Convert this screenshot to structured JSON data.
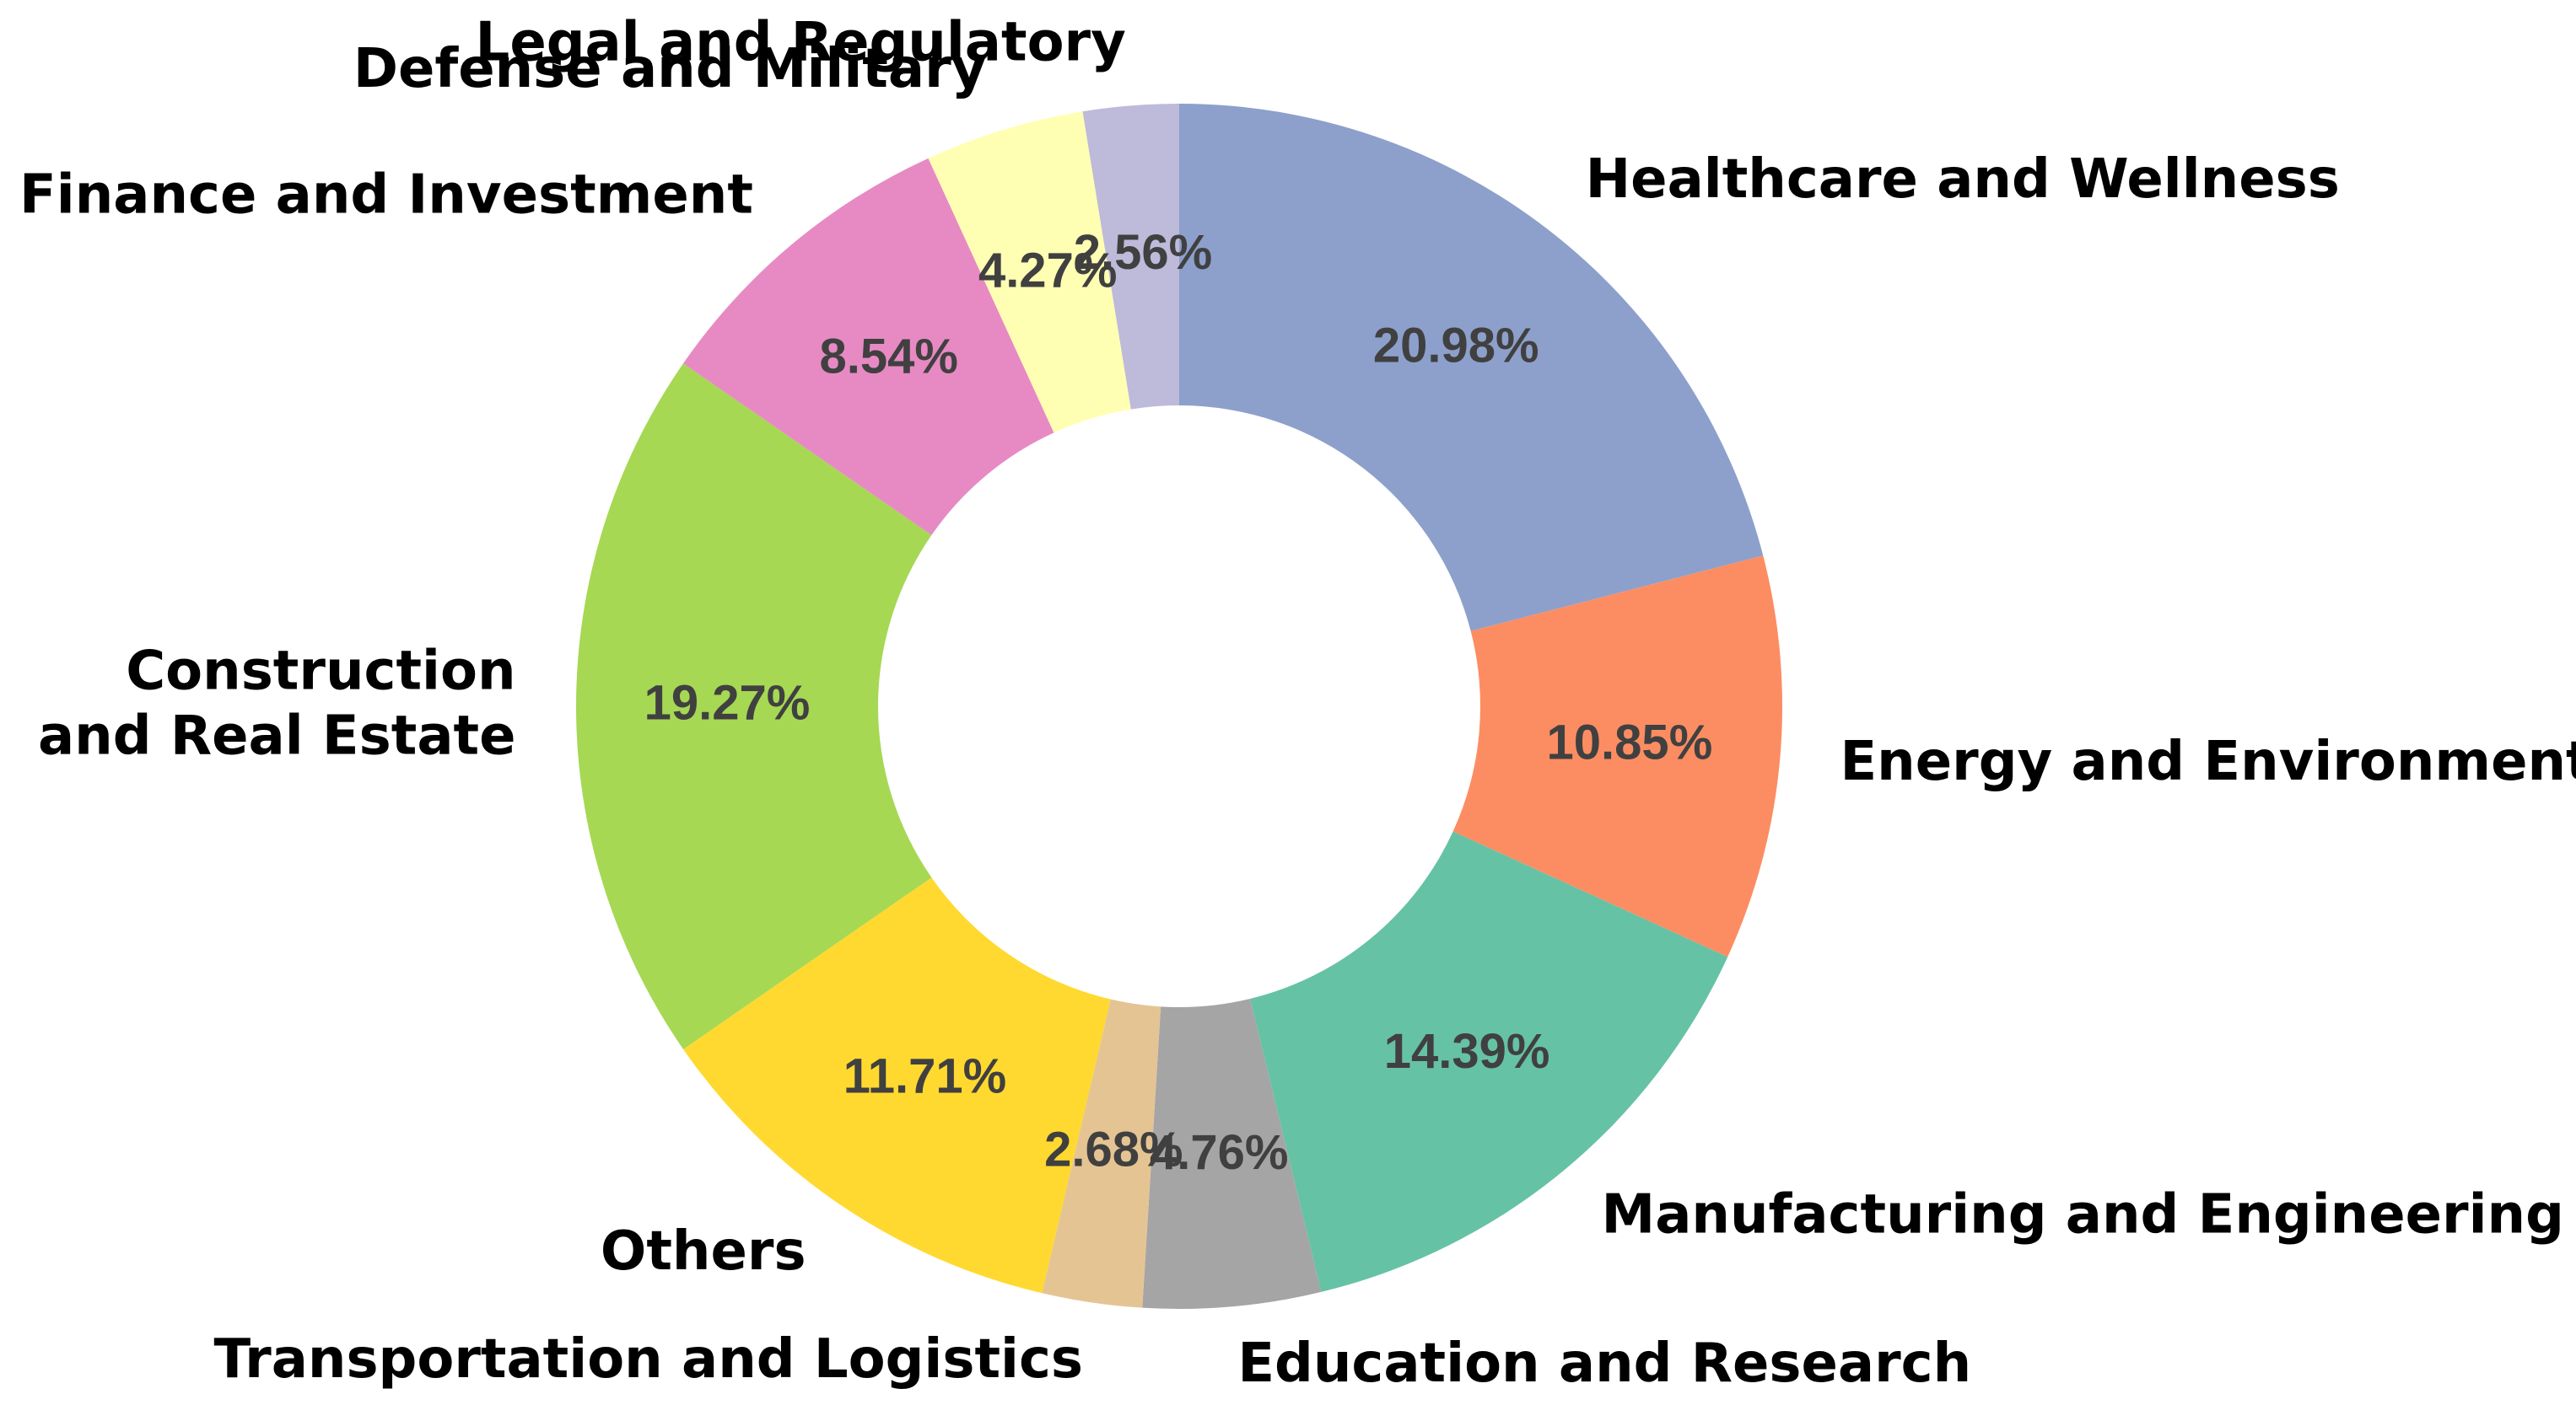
{
  "chart_data": {
    "type": "pie",
    "categories": [
      "Healthcare and Wellness",
      "Energy and Environment",
      "Manufacturing and Engineering",
      "Education and Research",
      "Transportation and Logistics",
      "Others",
      "Construction\nand Real Estate",
      "Finance and Investment",
      "Defense and Military",
      "Legal and Regulatory"
    ],
    "values": [
      20.98,
      10.85,
      14.39,
      4.76,
      2.68,
      11.71,
      19.27,
      8.54,
      4.27,
      2.56
    ],
    "value_labels": [
      "20.98%",
      "10.85%",
      "14.39%",
      "4.76%",
      "2.68%",
      "11.71%",
      "19.27%",
      "8.54%",
      "4.27%",
      "2.56%"
    ],
    "colors": [
      "#8da0cb",
      "#fc8d62",
      "#66c2a5",
      "#a5a5a5",
      "#e5c494",
      "#ffd92f",
      "#a6d854",
      "#e78ac3",
      "#ffffb3",
      "#bebada"
    ]
  }
}
